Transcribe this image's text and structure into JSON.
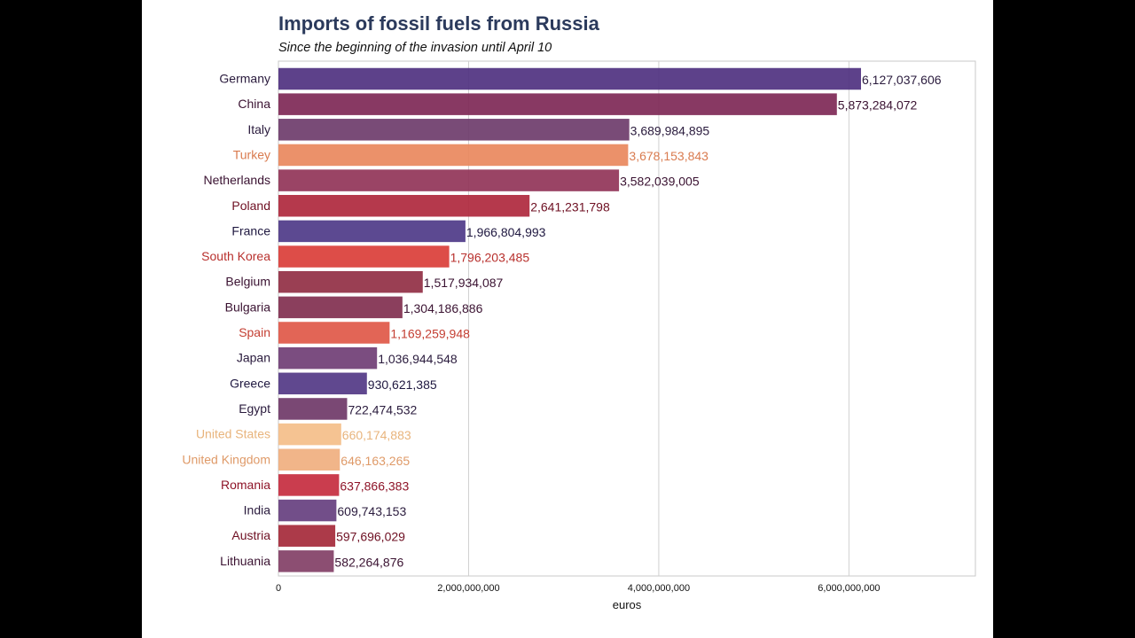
{
  "chart_data": {
    "type": "bar",
    "orientation": "horizontal",
    "title": "Imports of fossil fuels from Russia",
    "subtitle": "Since the beginning of the invasion until April 10",
    "xlabel": "euros",
    "ylabel": "",
    "xlim": [
      0,
      7330000000
    ],
    "xticks": [
      0,
      2000000000,
      4000000000,
      6000000000
    ],
    "xtick_labels": [
      "0",
      "2,000,000,000",
      "4,000,000,000",
      "6,000,000,000"
    ],
    "grid": "vertical",
    "bars": [
      {
        "label": "Germany",
        "value": 6127037606,
        "value_label": "6,127,037,606",
        "color": "#4b2c7d",
        "text_color": "#2a1b3d"
      },
      {
        "label": "China",
        "value": 5873284072,
        "value_label": "5,873,284,072",
        "color": "#7b2352",
        "text_color": "#3a1231"
      },
      {
        "label": "Italy",
        "value": 3689984895,
        "value_label": "3,689,984,895",
        "color": "#6a3768",
        "text_color": "#2a1b3d"
      },
      {
        "label": "Turkey",
        "value": 3678153843,
        "value_label": "3,678,153,843",
        "color": "#e9855a",
        "text_color": "#d97b4f"
      },
      {
        "label": "Netherlands",
        "value": 3582039005,
        "value_label": "3,582,039,005",
        "color": "#8f3054",
        "text_color": "#3a1231"
      },
      {
        "label": "Poland",
        "value": 2641231798,
        "value_label": "2,641,231,798",
        "color": "#ad2438",
        "text_color": "#6e0f22"
      },
      {
        "label": "France",
        "value": 1966804993,
        "value_label": "1,966,804,993",
        "color": "#4a3585",
        "text_color": "#1f1840"
      },
      {
        "label": "South Korea",
        "value": 1796203485,
        "value_label": "1,796,203,485",
        "color": "#d93a34",
        "text_color": "#b8302d"
      },
      {
        "label": "Belgium",
        "value": 1517934087,
        "value_label": "1,517,934,087",
        "color": "#8f2a40",
        "text_color": "#3a1231"
      },
      {
        "label": "Bulgaria",
        "value": 1304186886,
        "value_label": "1,304,186,886",
        "color": "#7e2a4b",
        "text_color": "#3a1231"
      },
      {
        "label": "Spain",
        "value": 1169259948,
        "value_label": "1,169,259,948",
        "color": "#df5444",
        "text_color": "#c43e32"
      },
      {
        "label": "Japan",
        "value": 1036944548,
        "value_label": "1,036,944,548",
        "color": "#6d3a72",
        "text_color": "#2a1b3d"
      },
      {
        "label": "Greece",
        "value": 930621385,
        "value_label": "930,621,385",
        "color": "#4f3483",
        "text_color": "#1f1840"
      },
      {
        "label": "Egypt",
        "value": 722474532,
        "value_label": "722,474,532",
        "color": "#6b3465",
        "text_color": "#2a1b3d"
      },
      {
        "label": "United States",
        "value": 660174883,
        "value_label": "660,174,883",
        "color": "#f4bd86",
        "text_color": "#e8b47c"
      },
      {
        "label": "United Kingdom",
        "value": 646163265,
        "value_label": "646,163,265",
        "color": "#f0ad7c",
        "text_color": "#df9a68"
      },
      {
        "label": "Romania",
        "value": 637866383,
        "value_label": "637,866,383",
        "color": "#c4283b",
        "text_color": "#8e1428"
      },
      {
        "label": "India",
        "value": 609743153,
        "value_label": "609,743,153",
        "color": "#633b7c",
        "text_color": "#2a1b3d"
      },
      {
        "label": "Austria",
        "value": 597696029,
        "value_label": "597,696,029",
        "color": "#a32535",
        "text_color": "#6e0f22"
      },
      {
        "label": "Lithuania",
        "value": 582264876,
        "value_label": "582,264,876",
        "color": "#7f3b63",
        "text_color": "#3a1231"
      }
    ]
  }
}
